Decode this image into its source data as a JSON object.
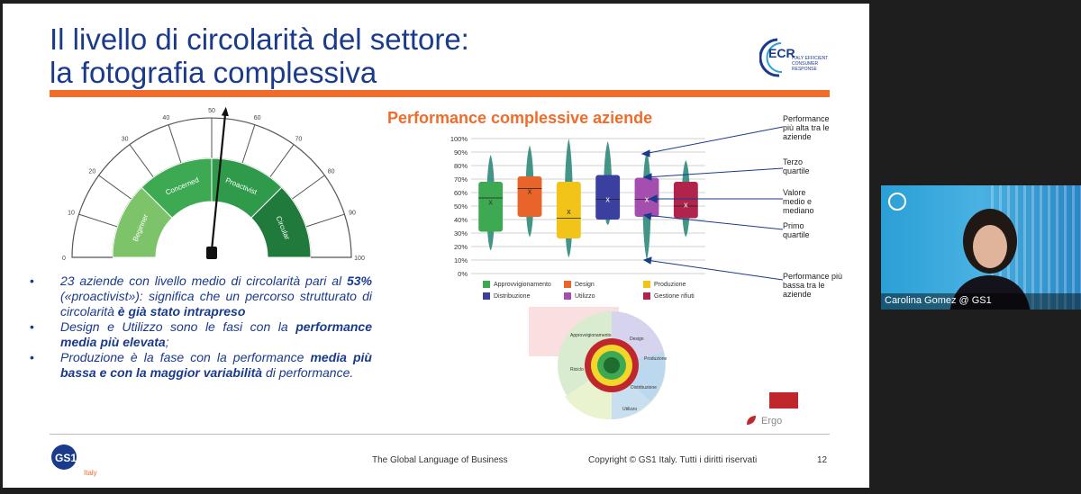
{
  "slide": {
    "title_line1": "Il livello di circolarità del settore:",
    "title_line2": "la fotografia complessiva",
    "ecr_logo": {
      "name": "ECR",
      "sub": "ITALY EFFICIENT CONSUMER RESPONSE"
    },
    "gauge": {
      "ticks": [
        "0",
        "10",
        "20",
        "30",
        "40",
        "50",
        "60",
        "70",
        "80",
        "90",
        "100"
      ],
      "segments": [
        "Beginner",
        "Concerned",
        "Proactivist",
        "Circular"
      ],
      "segment_colors": [
        "#7cc36a",
        "#3daa53",
        "#2f9a4a",
        "#1f7a3c"
      ],
      "value_percent": 53
    },
    "bullets": [
      {
        "parts": [
          {
            "t": "23 aziende con livello medio di circolarità pari al ",
            "b": false
          },
          {
            "t": "53%",
            "b": true
          },
          {
            "t": " («proactivist»): significa che un percorso strutturato di circolarità ",
            "b": false
          },
          {
            "t": "è già stato intrapreso",
            "b": true
          }
        ]
      },
      {
        "parts": [
          {
            "t": "Design e Utilizzo sono le fasi con la ",
            "b": false
          },
          {
            "t": "performance media più elevata",
            "b": true
          },
          {
            "t": ";",
            "b": false
          }
        ]
      },
      {
        "parts": [
          {
            "t": "Produzione è la fase con la performance ",
            "b": false
          },
          {
            "t": "media più bassa e con la maggior variabilità",
            "b": true
          },
          {
            "t": " di performance.",
            "b": false
          }
        ]
      }
    ],
    "chart_title": "Performance complessive aziende",
    "annotations": [
      "Performance più alta tra le aziende",
      "Terzo quartile",
      "Valore medio e mediano",
      "Primo quartile",
      "Performance più bassa tra le aziende"
    ],
    "wheel_labels": [
      "Approvvigionamento",
      "Design",
      "Produzione",
      "Distribuzione",
      "Utilizzo",
      "Riciclo"
    ],
    "ergo_label": "Ergo",
    "footer": {
      "tagline": "The Global Language of Business",
      "copyright": "Copyright © GS1 Italy. Tutti i diritti riservati",
      "page": "12",
      "gs1": "GS1",
      "gs1_italy": "Italy"
    }
  },
  "video": {
    "participant_name": "Carolina Gomez @ GS1"
  },
  "chart_data": {
    "type": "box",
    "title": "Performance complessive aziende",
    "y_ticks": [
      "0%",
      "10%",
      "20%",
      "30%",
      "40%",
      "50%",
      "60%",
      "70%",
      "80%",
      "90%",
      "100%"
    ],
    "ylim": [
      0,
      100
    ],
    "series": [
      {
        "name": "Approvvigionamento",
        "color": "#3daa53",
        "min": 17,
        "q1": 31,
        "median": 56,
        "mean": 53,
        "q3": 68,
        "max": 88
      },
      {
        "name": "Design",
        "color": "#e8642a",
        "min": 27,
        "q1": 42,
        "median": 63,
        "mean": 61,
        "q3": 72,
        "max": 95
      },
      {
        "name": "Produzione",
        "color": "#f2c318",
        "min": 12,
        "q1": 26,
        "median": 41,
        "mean": 46,
        "q3": 68,
        "max": 100
      },
      {
        "name": "Distribuzione",
        "color": "#3b3f9f",
        "min": 36,
        "q1": 40,
        "median": 55,
        "mean": 55,
        "q3": 73,
        "max": 98
      },
      {
        "name": "Utilizzo",
        "color": "#a44fb0",
        "min": 10,
        "q1": 42,
        "median": 55,
        "mean": 55,
        "q3": 71,
        "max": 90
      },
      {
        "name": "Gestione rifiuti",
        "color": "#b0234b",
        "min": 27,
        "q1": 41,
        "median": 50,
        "mean": 51,
        "q3": 68,
        "max": 84
      }
    ]
  }
}
